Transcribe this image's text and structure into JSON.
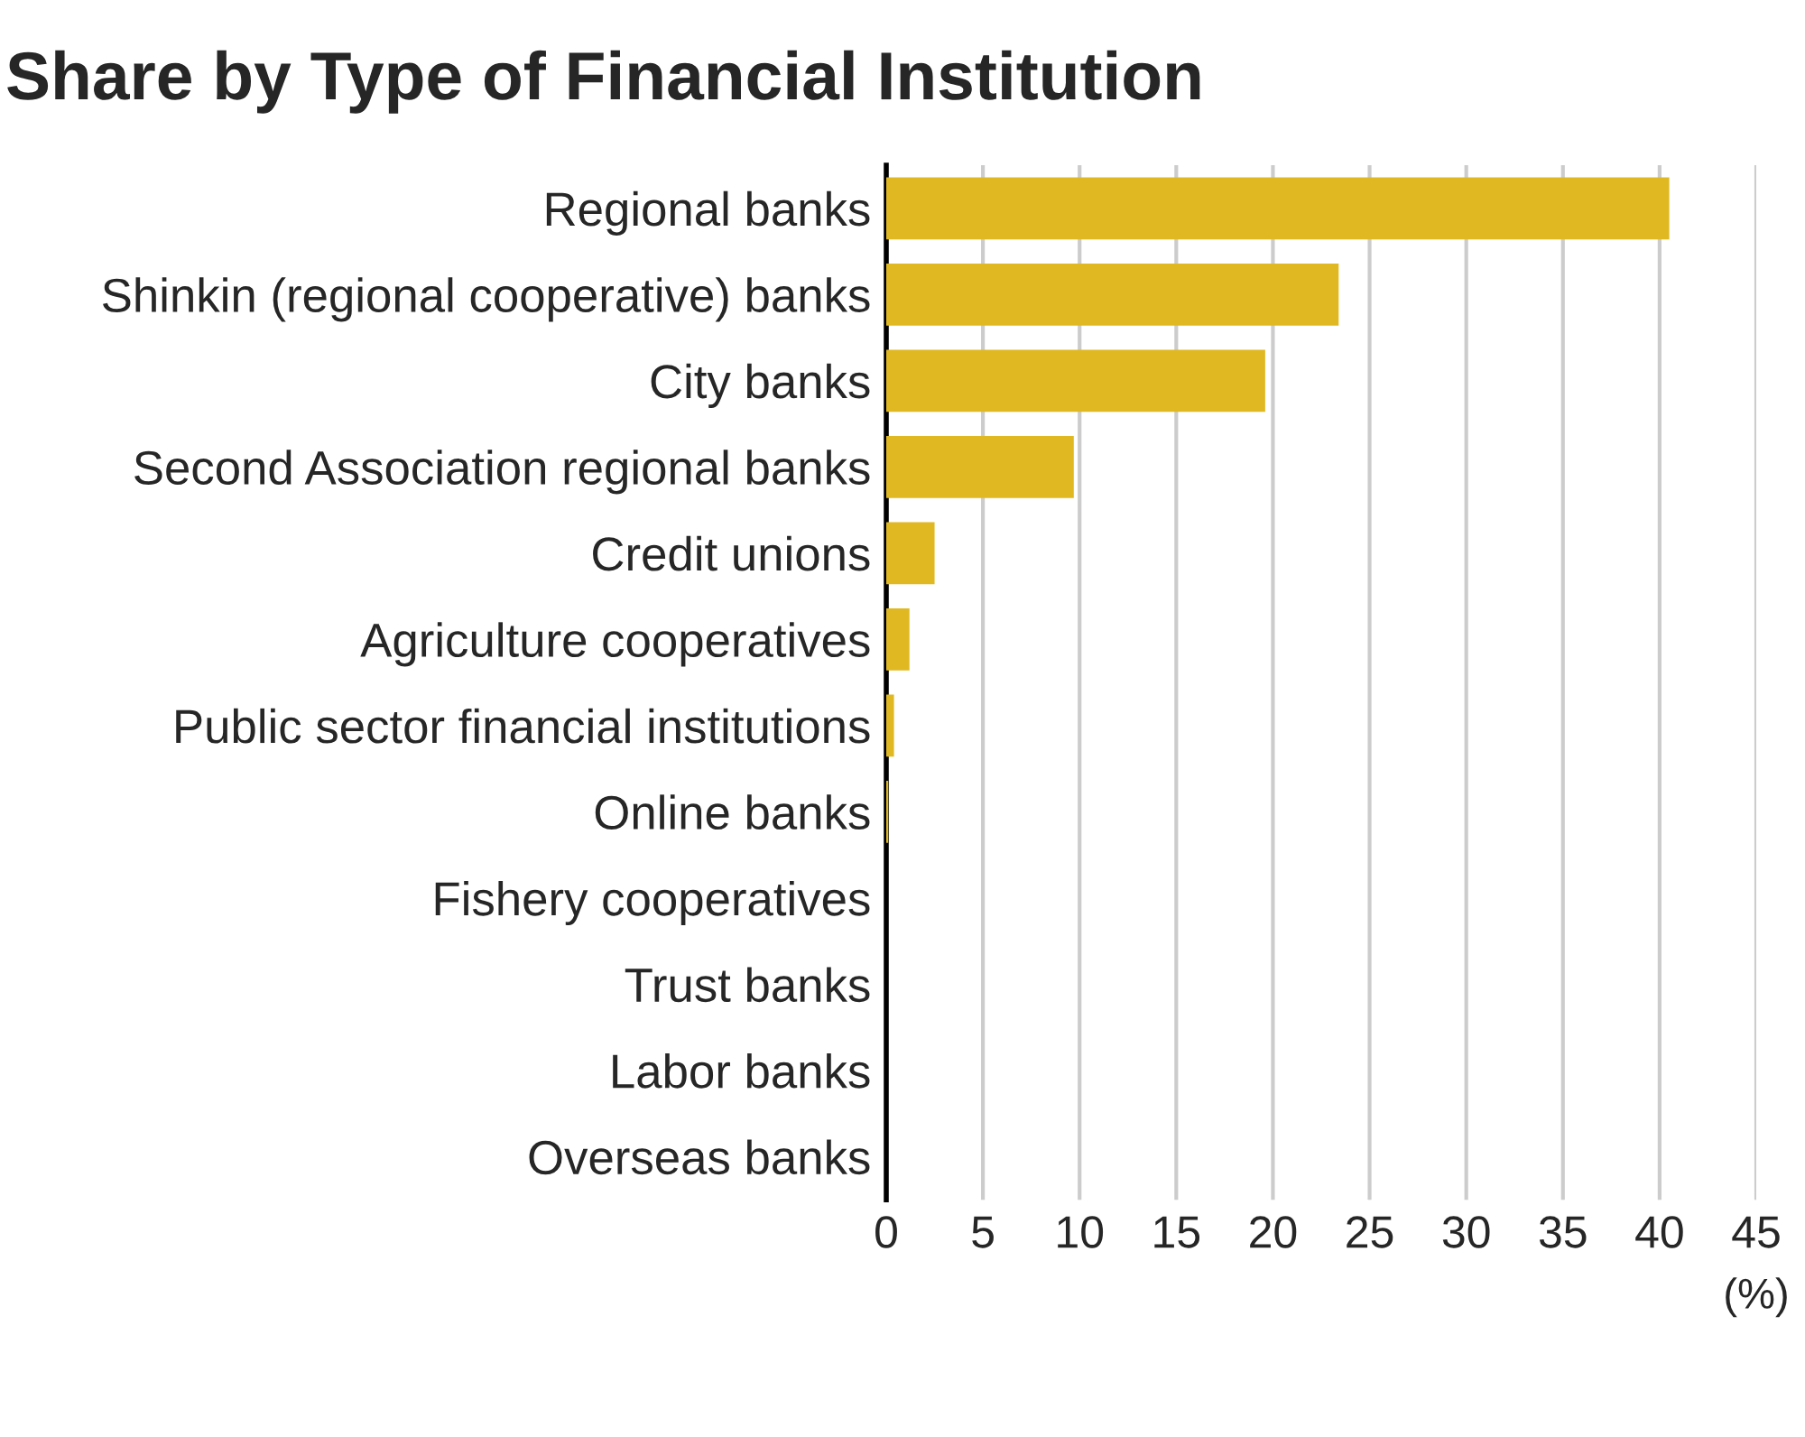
{
  "chart_data": {
    "type": "bar",
    "orientation": "horizontal",
    "title": "Share by Type of Financial Institution",
    "xlabel": "(%)",
    "categories": [
      "Regional banks",
      "Shinkin (regional cooperative) banks",
      "City banks",
      "Second Association regional banks",
      "Credit unions",
      "Agriculture cooperatives",
      "Public sector financial institutions",
      "Online banks",
      "Fishery cooperatives",
      "Trust banks",
      "Labor banks",
      "Overseas banks"
    ],
    "values": [
      40.5,
      23.4,
      19.6,
      9.7,
      2.5,
      1.2,
      0.4,
      0.1,
      0,
      0,
      0,
      0
    ],
    "color": "#e0b922",
    "xlim": [
      0,
      45
    ],
    "xticks": [
      0,
      5,
      10,
      15,
      20,
      25,
      30,
      35,
      40,
      45
    ],
    "grid": "x",
    "legend": false
  }
}
